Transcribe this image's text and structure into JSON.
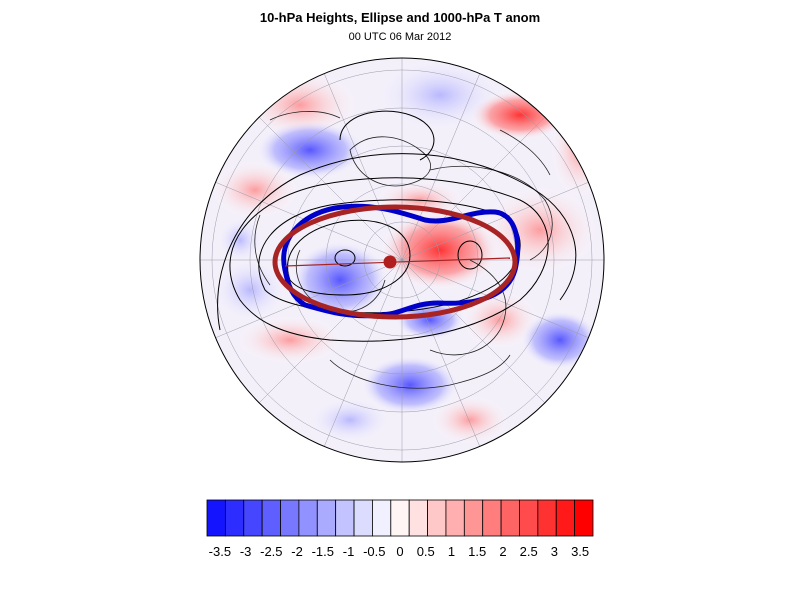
{
  "figure": {
    "title": "10-hPa Heights, Ellipse and 1000-hPa T anom",
    "subtitle": "00 UTC 06 Mar 2012"
  },
  "colors": {
    "ellipse": "#a82424",
    "vortex_edge": "#0000c8",
    "contours": "#000000",
    "center_dot": "#b01e1e"
  },
  "colorbar": {
    "colors": [
      "#1414ff",
      "#2d2dff",
      "#4646ff",
      "#5f5fff",
      "#7878ff",
      "#9191ff",
      "#aaaaff",
      "#c3c3ff",
      "#dcdcff",
      "#f0f0ff",
      "#fff5f5",
      "#ffe1e1",
      "#ffc8c8",
      "#ffafaf",
      "#ff9696",
      "#ff7d7d",
      "#ff6464",
      "#ff4b4b",
      "#ff3232",
      "#ff1919",
      "#ff0000"
    ],
    "tick_labels": [
      "-3.5",
      "-3",
      "-2.5",
      "-2",
      "-1.5",
      "-1",
      "-0.5",
      "0",
      "0.5",
      "1",
      "1.5",
      "2",
      "2.5",
      "3",
      "3.5"
    ]
  }
}
